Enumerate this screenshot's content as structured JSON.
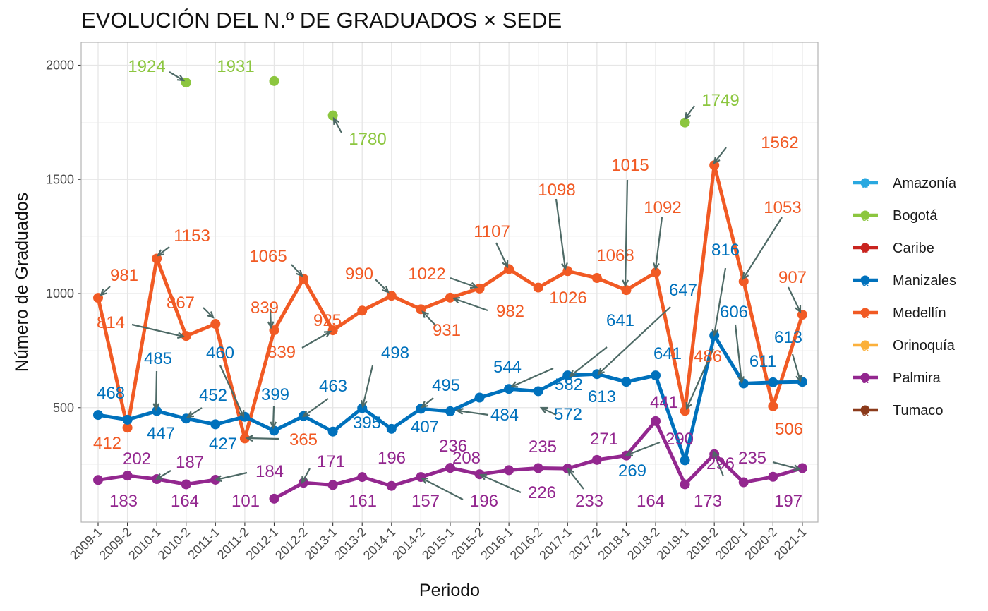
{
  "chart_data": {
    "type": "line",
    "title": "EVOLUCIÓN DEL N.º DE GRADUADOS × SEDE",
    "xlabel": "Periodo",
    "ylabel": "Número de Graduados",
    "ylim": [
      0,
      2100
    ],
    "yticks": [
      500,
      1000,
      1500,
      2000
    ],
    "grid": true,
    "legend_position": "right",
    "x": [
      "2009-1",
      "2009-2",
      "2010-1",
      "2010-2",
      "2011-1",
      "2011-2",
      "2012-1",
      "2012-2",
      "2013-1",
      "2013-2",
      "2014-1",
      "2014-2",
      "2015-1",
      "2015-2",
      "2016-1",
      "2016-2",
      "2017-1",
      "2017-2",
      "2018-1",
      "2018-2",
      "2019-1",
      "2019-2",
      "2020-1",
      "2020-2",
      "2021-1"
    ],
    "legend": [
      {
        "name": "Amazonía",
        "color": "#29a8e0",
        "glyph": "a"
      },
      {
        "name": "Bogotá",
        "color": "#8cc63f",
        "glyph": "a"
      },
      {
        "name": "Caribe",
        "color": "#c9241f",
        "glyph": "a"
      },
      {
        "name": "Manizales",
        "color": "#0071bc",
        "glyph": "a"
      },
      {
        "name": "Medellín",
        "color": "#f15a24",
        "glyph": "a"
      },
      {
        "name": "Orinoquía",
        "color": "#fbb03b",
        "glyph": "a"
      },
      {
        "name": "Palmira",
        "color": "#93278f",
        "glyph": "a"
      },
      {
        "name": "Tumaco",
        "color": "#8b3a1a",
        "glyph": "a"
      }
    ],
    "series": [
      {
        "name": "Bogotá",
        "color": "#8cc63f",
        "values": [
          null,
          null,
          null,
          1924,
          null,
          null,
          1931,
          null,
          1780,
          null,
          null,
          null,
          null,
          null,
          null,
          null,
          null,
          null,
          null,
          null,
          1749,
          null,
          null,
          null,
          null
        ]
      },
      {
        "name": "Medellín",
        "color": "#f15a24",
        "values": [
          981,
          412,
          1153,
          814,
          867,
          365,
          839,
          1065,
          839,
          925,
          990,
          931,
          982,
          1022,
          1107,
          1026,
          1098,
          1068,
          1015,
          1092,
          486,
          1562,
          1053,
          506,
          907
        ]
      },
      {
        "name": "Manizales",
        "color": "#0071bc",
        "values": [
          468,
          447,
          485,
          452,
          427,
          460,
          399,
          463,
          395,
          498,
          407,
          495,
          484,
          544,
          582,
          572,
          641,
          647,
          613,
          641,
          269,
          816,
          606,
          611,
          613
        ]
      },
      {
        "name": "Palmira",
        "color": "#93278f",
        "values": [
          183,
          202,
          187,
          164,
          184,
          null,
          101,
          171,
          161,
          196,
          157,
          196,
          236,
          208,
          226,
          235,
          233,
          271,
          290,
          441,
          164,
          296,
          173,
          197,
          235
        ]
      }
    ],
    "labels": [
      {
        "text": "1924",
        "series": "Bogotá"
      },
      {
        "text": "1931",
        "series": "Bogotá"
      },
      {
        "text": "1780",
        "series": "Bogotá"
      },
      {
        "text": "1749",
        "series": "Bogotá"
      },
      {
        "text": "981",
        "series": "Medellín"
      },
      {
        "text": "412",
        "series": "Medellín"
      },
      {
        "text": "1153",
        "series": "Medellín"
      },
      {
        "text": "814",
        "series": "Medellín"
      },
      {
        "text": "867",
        "series": "Medellín"
      },
      {
        "text": "365",
        "series": "Medellín"
      },
      {
        "text": "839",
        "series": "Medellín"
      },
      {
        "text": "1065",
        "series": "Medellín"
      },
      {
        "text": "839",
        "series": "Medellín"
      },
      {
        "text": "925",
        "series": "Medellín"
      },
      {
        "text": "990",
        "series": "Medellín"
      },
      {
        "text": "931",
        "series": "Medellín"
      },
      {
        "text": "982",
        "series": "Medellín"
      },
      {
        "text": "1022",
        "series": "Medellín"
      },
      {
        "text": "1107",
        "series": "Medellín"
      },
      {
        "text": "1026",
        "series": "Medellín"
      },
      {
        "text": "1098",
        "series": "Medellín"
      },
      {
        "text": "1068",
        "series": "Medellín"
      },
      {
        "text": "1015",
        "series": "Medellín"
      },
      {
        "text": "1092",
        "series": "Medellín"
      },
      {
        "text": "486",
        "series": "Medellín"
      },
      {
        "text": "1562",
        "series": "Medellín"
      },
      {
        "text": "1053",
        "series": "Medellín"
      },
      {
        "text": "506",
        "series": "Medellín"
      },
      {
        "text": "907",
        "series": "Medellín"
      },
      {
        "text": "468",
        "series": "Manizales"
      },
      {
        "text": "447",
        "series": "Manizales"
      },
      {
        "text": "485",
        "series": "Manizales"
      },
      {
        "text": "452",
        "series": "Manizales"
      },
      {
        "text": "427",
        "series": "Manizales"
      },
      {
        "text": "460",
        "series": "Manizales"
      },
      {
        "text": "399",
        "series": "Manizales"
      },
      {
        "text": "463",
        "series": "Manizales"
      },
      {
        "text": "395",
        "series": "Manizales"
      },
      {
        "text": "498",
        "series": "Manizales"
      },
      {
        "text": "407",
        "series": "Manizales"
      },
      {
        "text": "495",
        "series": "Manizales"
      },
      {
        "text": "484",
        "series": "Manizales"
      },
      {
        "text": "544",
        "series": "Manizales"
      },
      {
        "text": "582",
        "series": "Manizales"
      },
      {
        "text": "572",
        "series": "Manizales"
      },
      {
        "text": "641",
        "series": "Manizales"
      },
      {
        "text": "613",
        "series": "Manizales"
      },
      {
        "text": "647",
        "series": "Manizales"
      },
      {
        "text": "641",
        "series": "Manizales"
      },
      {
        "text": "269",
        "series": "Manizales"
      },
      {
        "text": "816",
        "series": "Manizales"
      },
      {
        "text": "606",
        "series": "Manizales"
      },
      {
        "text": "611",
        "series": "Manizales"
      },
      {
        "text": "613",
        "series": "Manizales"
      },
      {
        "text": "183",
        "series": "Palmira"
      },
      {
        "text": "202",
        "series": "Palmira"
      },
      {
        "text": "187",
        "series": "Palmira"
      },
      {
        "text": "164",
        "series": "Palmira"
      },
      {
        "text": "184",
        "series": "Palmira"
      },
      {
        "text": "101",
        "series": "Palmira"
      },
      {
        "text": "171",
        "series": "Palmira"
      },
      {
        "text": "161",
        "series": "Palmira"
      },
      {
        "text": "196",
        "series": "Palmira"
      },
      {
        "text": "157",
        "series": "Palmira"
      },
      {
        "text": "196",
        "series": "Palmira"
      },
      {
        "text": "236",
        "series": "Palmira"
      },
      {
        "text": "226",
        "series": "Palmira"
      },
      {
        "text": "208",
        "series": "Palmira"
      },
      {
        "text": "235",
        "series": "Palmira"
      },
      {
        "text": "233",
        "series": "Palmira"
      },
      {
        "text": "271",
        "series": "Palmira"
      },
      {
        "text": "441",
        "series": "Palmira"
      },
      {
        "text": "290",
        "series": "Palmira"
      },
      {
        "text": "164",
        "series": "Palmira"
      },
      {
        "text": "296",
        "series": "Palmira"
      },
      {
        "text": "173",
        "series": "Palmira"
      },
      {
        "text": "235",
        "series": "Palmira"
      },
      {
        "text": "197",
        "series": "Palmira"
      }
    ]
  }
}
